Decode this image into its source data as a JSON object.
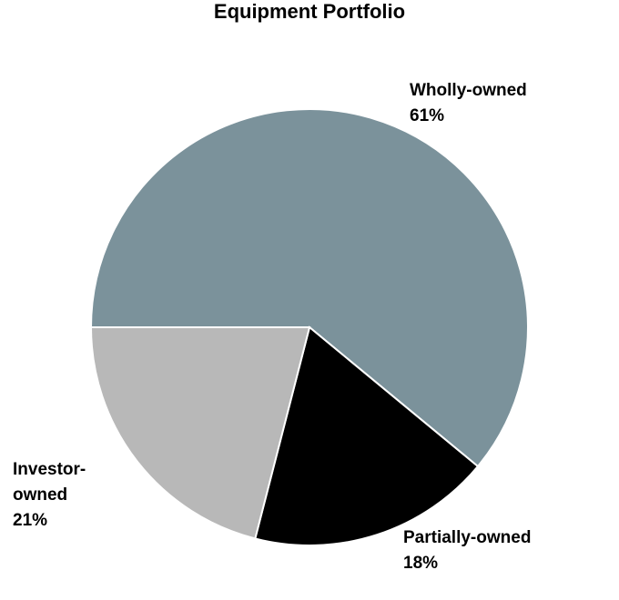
{
  "chart_data": {
    "type": "pie",
    "title": "Equipment Portfolio",
    "slices": [
      {
        "label_lines": [
          "Wholly-owned"
        ],
        "percent_label": "61%",
        "value": 61,
        "color": "#7b929b"
      },
      {
        "label_lines": [
          "Partially-owned"
        ],
        "percent_label": "18%",
        "value": 18,
        "color": "#000000"
      },
      {
        "label_lines": [
          "Investor-",
          "owned"
        ],
        "percent_label": "21%",
        "value": 21,
        "color": "#b8b8b8"
      }
    ],
    "start_angle_deg": 180,
    "direction": "clockwise",
    "slice_border_color": "#ffffff"
  }
}
